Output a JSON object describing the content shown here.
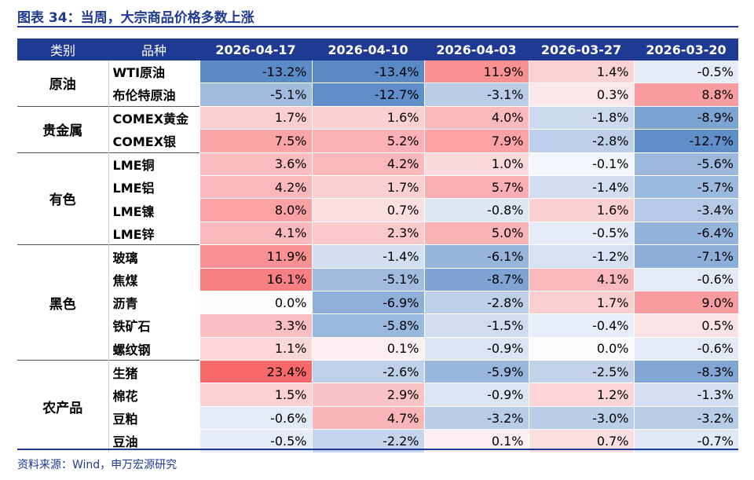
{
  "title": "图表 34：当周，大宗商品价格多数上涨",
  "source": "资料来源：Wind，申万宏源研究",
  "chart_data": {
    "type": "table",
    "columns": [
      "类别",
      "品种",
      "2026-04-17",
      "2026-04-10",
      "2026-04-03",
      "2026-03-27",
      "2026-03-20"
    ],
    "groups": [
      {
        "name": "原油",
        "rows": [
          {
            "name": "WTI原油",
            "values": [
              "-13.2%",
              "-13.4%",
              "11.9%",
              "1.4%",
              "-0.5%"
            ],
            "nums": [
              -13.2,
              -13.4,
              11.9,
              1.4,
              -0.5
            ]
          },
          {
            "name": "布伦特原油",
            "values": [
              "-5.1%",
              "-12.7%",
              "-3.1%",
              "0.3%",
              "8.8%"
            ],
            "nums": [
              -5.1,
              -12.7,
              -3.1,
              0.3,
              8.8
            ]
          }
        ]
      },
      {
        "name": "贵金属",
        "rows": [
          {
            "name": "COMEX黄金",
            "values": [
              "1.7%",
              "1.6%",
              "4.0%",
              "-1.8%",
              "-8.9%"
            ],
            "nums": [
              1.7,
              1.6,
              4.0,
              -1.8,
              -8.9
            ]
          },
          {
            "name": "COMEX银",
            "values": [
              "7.5%",
              "5.2%",
              "7.9%",
              "-2.8%",
              "-12.7%"
            ],
            "nums": [
              7.5,
              5.2,
              7.9,
              -2.8,
              -12.7
            ]
          }
        ]
      },
      {
        "name": "有色",
        "rows": [
          {
            "name": "LME铜",
            "values": [
              "3.6%",
              "4.2%",
              "1.0%",
              "-0.1%",
              "-5.6%"
            ],
            "nums": [
              3.6,
              4.2,
              1.0,
              -0.1,
              -5.6
            ]
          },
          {
            "name": "LME铝",
            "values": [
              "4.2%",
              "1.7%",
              "5.7%",
              "-1.4%",
              "-5.7%"
            ],
            "nums": [
              4.2,
              1.7,
              5.7,
              -1.4,
              -5.7
            ]
          },
          {
            "name": "LME镍",
            "values": [
              "8.0%",
              "0.7%",
              "-0.8%",
              "1.6%",
              "-3.4%"
            ],
            "nums": [
              8.0,
              0.7,
              -0.8,
              1.6,
              -3.4
            ]
          },
          {
            "name": "LME锌",
            "values": [
              "4.1%",
              "2.3%",
              "5.0%",
              "-0.5%",
              "-6.4%"
            ],
            "nums": [
              4.1,
              2.3,
              5.0,
              -0.5,
              -6.4
            ]
          }
        ]
      },
      {
        "name": "黑色",
        "rows": [
          {
            "name": "玻璃",
            "values": [
              "11.9%",
              "-1.4%",
              "-6.1%",
              "-1.2%",
              "-7.1%"
            ],
            "nums": [
              11.9,
              -1.4,
              -6.1,
              -1.2,
              -7.1
            ]
          },
          {
            "name": "焦煤",
            "values": [
              "16.1%",
              "-5.1%",
              "-8.7%",
              "4.1%",
              "-0.6%"
            ],
            "nums": [
              16.1,
              -5.1,
              -8.7,
              4.1,
              -0.6
            ]
          },
          {
            "name": "沥青",
            "values": [
              "0.0%",
              "-6.9%",
              "-2.8%",
              "1.7%",
              "9.0%"
            ],
            "nums": [
              0.0,
              -6.9,
              -2.8,
              1.7,
              9.0
            ]
          },
          {
            "name": "铁矿石",
            "values": [
              "3.3%",
              "-5.8%",
              "-1.5%",
              "-0.4%",
              "0.5%"
            ],
            "nums": [
              3.3,
              -5.8,
              -1.5,
              -0.4,
              0.5
            ]
          },
          {
            "name": "螺纹钢",
            "values": [
              "1.1%",
              "0.1%",
              "-0.9%",
              "0.0%",
              "-0.6%"
            ],
            "nums": [
              1.1,
              0.1,
              -0.9,
              0.0,
              -0.6
            ]
          }
        ]
      },
      {
        "name": "农产品",
        "rows": [
          {
            "name": "生猪",
            "values": [
              "23.4%",
              "-2.6%",
              "-5.9%",
              "-2.5%",
              "-8.3%"
            ],
            "nums": [
              23.4,
              -2.6,
              -5.9,
              -2.5,
              -8.3
            ]
          },
          {
            "name": "棉花",
            "values": [
              "1.5%",
              "2.9%",
              "-0.9%",
              "1.2%",
              "-1.3%"
            ],
            "nums": [
              1.5,
              2.9,
              -0.9,
              1.2,
              -1.3
            ]
          },
          {
            "name": "豆粕",
            "values": [
              "-0.6%",
              "4.7%",
              "-3.2%",
              "-3.0%",
              "-3.2%"
            ],
            "nums": [
              -0.6,
              4.7,
              -3.2,
              -3.0,
              -3.2
            ]
          },
          {
            "name": "豆油",
            "values": [
              "-0.5%",
              "-2.2%",
              "0.1%",
              "0.7%",
              "-0.7%"
            ],
            "nums": [
              -0.5,
              -2.2,
              0.1,
              0.7,
              -0.7
            ]
          }
        ]
      }
    ],
    "colors": {
      "positive_max": "#f8696b",
      "negative_max": "#5a8ac6",
      "neutral": "#fcfcff"
    }
  }
}
